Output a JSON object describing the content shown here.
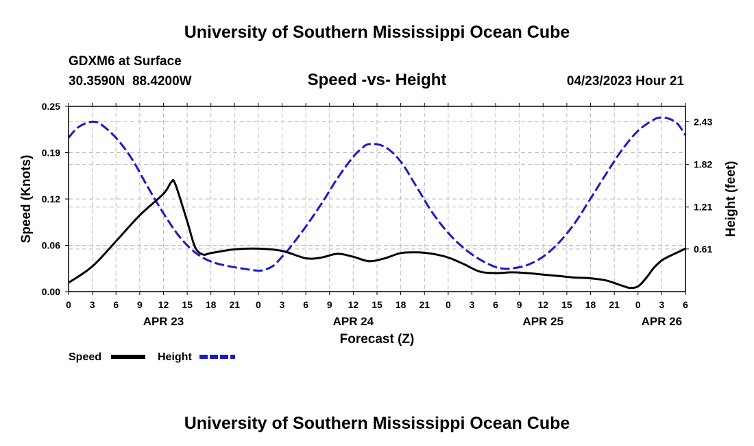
{
  "title": "University of Southern Mississippi Ocean Cube",
  "footer_title": "University of Southern Mississippi Ocean Cube",
  "station": "GDXM6 at Surface",
  "location": "30.3590N  88.4200W",
  "datetime": "04/23/2023 Hour 21",
  "colors": {
    "speed": "#000000",
    "height": "#1a1ac8",
    "grid": "#bbbbbb"
  },
  "chart_data": {
    "type": "line",
    "title": "Speed -vs- Height",
    "xlabel": "Forecast (Z)",
    "ylabel_left": "Speed (Knots)",
    "ylabel_right": "Height (feet)",
    "x_range_hours": [
      0,
      78
    ],
    "ylim_left": [
      0,
      0.25
    ],
    "ylim_right": [
      0,
      2.65
    ],
    "y_ticks_left": [
      "0.00",
      "0.06",
      "0.12",
      "0.19",
      "0.25"
    ],
    "y_ticks_left_values": [
      0,
      0.0625,
      0.125,
      0.1875,
      0.25
    ],
    "y_ticks_right": [
      "0.61",
      "1.21",
      "1.82",
      "2.43"
    ],
    "y_ticks_right_values": [
      0.61,
      1.21,
      1.82,
      2.43
    ],
    "x_tick_labels": [
      "0",
      "3",
      "6",
      "9",
      "12",
      "15",
      "18",
      "21",
      "0",
      "3",
      "6",
      "9",
      "12",
      "15",
      "18",
      "21",
      "0",
      "3",
      "6",
      "9",
      "12",
      "15",
      "18",
      "21",
      "0",
      "3",
      "6"
    ],
    "date_labels": [
      {
        "label": "APR 23",
        "hour": 12
      },
      {
        "label": "APR 24",
        "hour": 36
      },
      {
        "label": "APR 25",
        "hour": 60
      },
      {
        "label": "APR 26",
        "hour": 75
      }
    ],
    "grid": true,
    "series": [
      {
        "name": "Speed",
        "axis": "left",
        "style": "solid",
        "x": [
          0,
          3,
          6,
          9,
          12,
          13,
          13.5,
          15,
          16,
          17,
          18,
          21,
          24,
          27,
          30,
          32,
          34,
          36,
          38,
          40,
          42,
          44,
          46,
          48,
          50,
          52,
          54,
          56,
          58,
          60,
          62,
          64,
          66,
          68,
          70,
          71,
          72,
          73,
          74,
          75,
          76,
          78
        ],
        "y": [
          0.012,
          0.034,
          0.068,
          0.103,
          0.132,
          0.148,
          0.145,
          0.095,
          0.06,
          0.05,
          0.052,
          0.057,
          0.058,
          0.055,
          0.045,
          0.046,
          0.051,
          0.047,
          0.041,
          0.045,
          0.052,
          0.053,
          0.051,
          0.046,
          0.037,
          0.027,
          0.025,
          0.026,
          0.025,
          0.023,
          0.021,
          0.019,
          0.018,
          0.015,
          0.008,
          0.005,
          0.007,
          0.018,
          0.032,
          0.042,
          0.048,
          0.058
        ]
      },
      {
        "name": "Height",
        "axis": "right",
        "style": "dashed",
        "x": [
          0,
          1,
          2,
          3,
          4,
          6,
          8,
          10,
          12,
          14,
          16,
          18,
          20,
          22,
          24,
          25,
          26,
          27,
          28,
          30,
          32,
          34,
          36,
          37,
          38,
          40,
          42,
          44,
          46,
          48,
          50,
          52,
          54,
          55,
          56,
          58,
          60,
          62,
          64,
          66,
          68,
          70,
          72,
          74,
          75,
          76,
          77,
          78
        ],
        "y": [
          2.2,
          2.33,
          2.4,
          2.43,
          2.4,
          2.2,
          1.9,
          1.5,
          1.12,
          0.79,
          0.56,
          0.43,
          0.37,
          0.33,
          0.3,
          0.32,
          0.38,
          0.5,
          0.63,
          0.93,
          1.26,
          1.62,
          1.93,
          2.04,
          2.11,
          2.07,
          1.86,
          1.5,
          1.13,
          0.84,
          0.62,
          0.46,
          0.35,
          0.33,
          0.33,
          0.38,
          0.5,
          0.7,
          0.98,
          1.33,
          1.69,
          2.03,
          2.3,
          2.46,
          2.49,
          2.47,
          2.4,
          2.24
        ]
      }
    ],
    "legend": [
      {
        "label": "Speed"
      },
      {
        "label": "Height"
      }
    ]
  }
}
